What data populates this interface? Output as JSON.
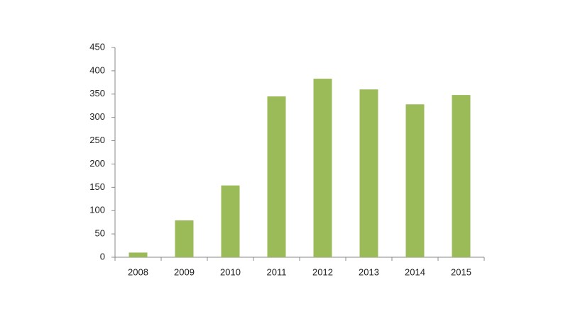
{
  "chart_data": {
    "type": "bar",
    "categories": [
      "2008",
      "2009",
      "2010",
      "2011",
      "2012",
      "2013",
      "2014",
      "2015"
    ],
    "values": [
      10,
      79,
      154,
      345,
      383,
      360,
      328,
      348
    ],
    "color": "#9bbb59",
    "ylim": [
      0,
      450
    ],
    "yticks": [
      0,
      50,
      100,
      150,
      200,
      250,
      300,
      350,
      400,
      450
    ],
    "grid": false
  }
}
